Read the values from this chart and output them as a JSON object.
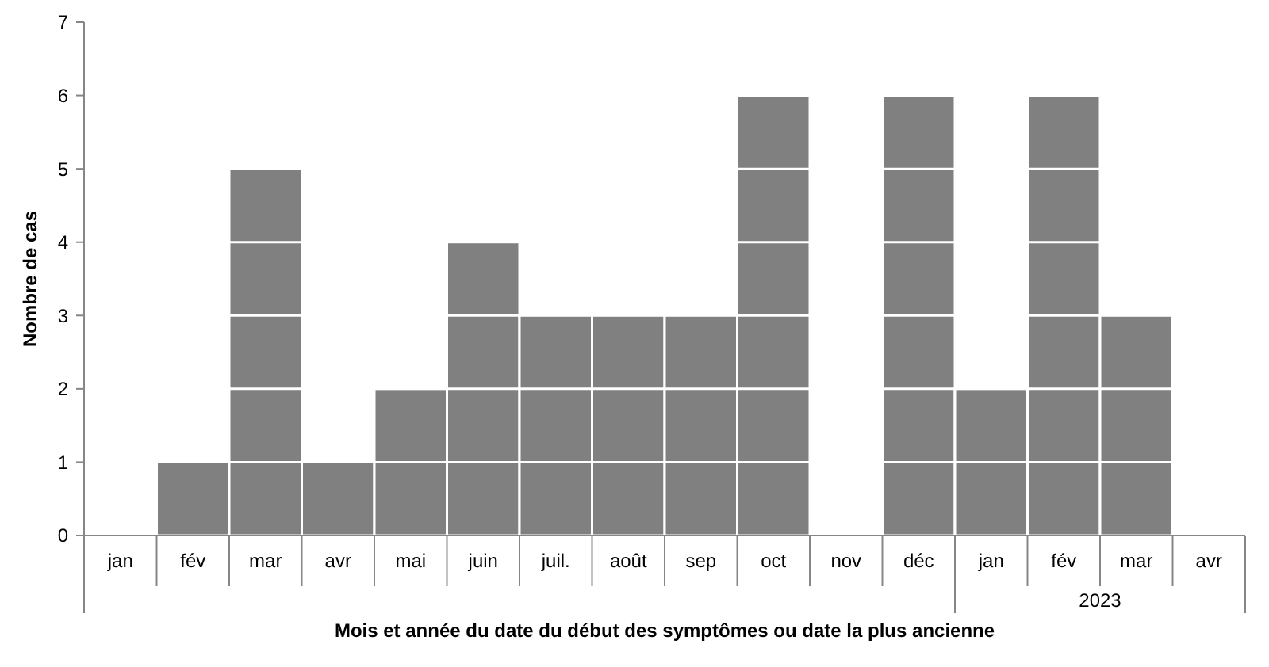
{
  "chart_data": {
    "type": "bar",
    "xlabel": "Mois et année du date du début des symptômes ou date la plus ancienne",
    "ylabel": "Nombre de cas",
    "categories": [
      "jan",
      "fév",
      "mar",
      "avr",
      "mai",
      "juin",
      "juil.",
      "août",
      "sep",
      "oct",
      "nov",
      "déc",
      "jan",
      "fév",
      "mar",
      "avr"
    ],
    "values": [
      0,
      1,
      5,
      1,
      2,
      4,
      3,
      3,
      3,
      6,
      0,
      6,
      2,
      6,
      3,
      0
    ],
    "color": "#808080",
    "ylim": [
      0,
      7
    ],
    "yticks": [
      0,
      1,
      2,
      3,
      4,
      5,
      6,
      7
    ],
    "grid": false,
    "annotations": [
      "2023"
    ]
  }
}
